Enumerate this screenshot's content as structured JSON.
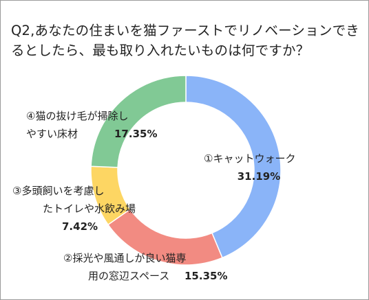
{
  "title": "Q2,あなたの住まいを猫ファーストでリノベーションできるとしたら、最も取り入れたいものは何ですか？",
  "chart_data": {
    "type": "pie",
    "donut": true,
    "title": "Q2,あなたの住まいを猫ファーストでリノベーションできるとしたら、最も取り入れたいものは何ですか？",
    "slices": [
      {
        "label": "①キャットウォーク",
        "value": 31.19,
        "value_label": "31.19%",
        "color": "#8ab4f8"
      },
      {
        "label": "②採光や風通しが良い猫専用の窓辺スペース",
        "value": 15.35,
        "value_label": "15.35%",
        "color": "#f28b82"
      },
      {
        "label": "③多頭飼いを考慮したトイレや水飲み場",
        "value": 7.42,
        "value_label": "7.42%",
        "color": "#fdd663"
      },
      {
        "label": "④猫の抜け毛が掃除しやすい床材",
        "value": 17.35,
        "value_label": "17.35%",
        "color": "#81c995"
      }
    ]
  }
}
